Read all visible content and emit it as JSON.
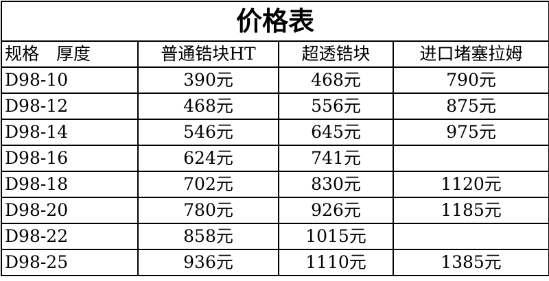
{
  "title": "价格表",
  "headers": [
    "规格　厚度",
    "普通锆块HT",
    "超透锆块",
    "进口堵塞拉姆"
  ],
  "rows": [
    [
      "D98-10",
      "390元",
      "468元",
      "790元"
    ],
    [
      "D98-12",
      "468元",
      "556元",
      "875元"
    ],
    [
      "D98-14",
      "546元",
      "645元",
      "975元"
    ],
    [
      "D98-16",
      "624元",
      "741元",
      ""
    ],
    [
      "D98-18",
      "702元",
      "830元",
      "1120元"
    ],
    [
      "D98-20",
      "780元",
      "926元",
      "1185元"
    ],
    [
      "D98-22",
      "858元",
      "1015元",
      ""
    ],
    [
      "D98-25",
      "936元",
      "1110元",
      "1385元"
    ]
  ]
}
